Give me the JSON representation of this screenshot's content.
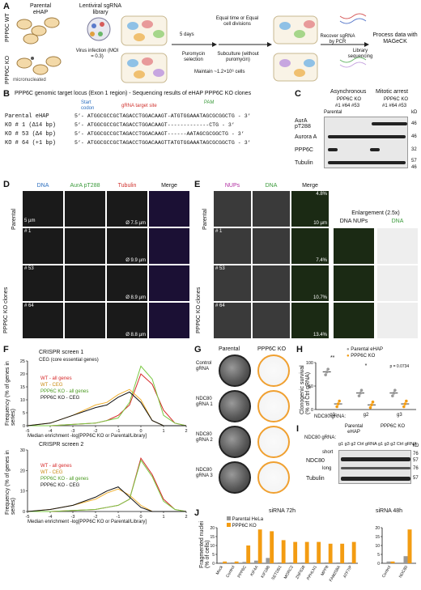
{
  "panel_a": {
    "label": "A",
    "row_wt": "PPP6C WT",
    "row_ko": "PPP6C KO",
    "parental": "Parental eHAP",
    "micronucleated": "micronucleated",
    "library": "Lentiviral sgRNA library",
    "infection": "Virus infection (MOI = 0.3)",
    "days": "5 days",
    "selection": "Puromycin selection",
    "equal": "Equal time or Equal cell divisions",
    "subculture": "Subculture (without puromycin)",
    "maintain": "Maintain ~1.2×10⁶ cells",
    "recover": "Recover sgRNA by PCR",
    "library_seq": "Library sequencing",
    "process": "Process data with MAGeCK"
  },
  "panel_b": {
    "label": "B",
    "title": "PPP6C genomic target locus (Exon 1 region) - Sequencing results of eHAP PPP6C KO clones",
    "start_codon": "Start codon",
    "target_site": "gRNA target site",
    "pam": "PAM",
    "rows": [
      {
        "name": "Parental eHAP",
        "seq": "5’- ATGGCGCCGCTAGACCTGGACAAGT-ATGTGGAAATAGCGCGGCTG - 3’"
      },
      {
        "name": "KO # 1 (Δ14 bp)",
        "seq": "5’- ATGGCGCCGCTAGACCTGGACAAGT-------------CTG - 3’"
      },
      {
        "name": "KO # 53 (Δ4 bp)",
        "seq": "5’- ATGGCGCCGCTAGACCTGGACAAGT------AATAGCGCGGCTG - 3’"
      },
      {
        "name": "KO # 64 (+1 bp)",
        "seq": "5’- ATGGCGCCGCTAGACCTGGACAAGTTATGTGGAAATAGCGCGGCTG - 3’"
      }
    ]
  },
  "panel_c": {
    "label": "C",
    "asynchronous": "Asynchronous",
    "mitotic": "Mitotic arrest",
    "ko": "PPP6C KO",
    "parental": "Parental",
    "clones": [
      "#1",
      "#64",
      "#53"
    ],
    "rows": [
      "AurA pT288",
      "Aurora A",
      "PPP6C",
      "Tubulin"
    ],
    "kd": "kD",
    "markers": [
      "46",
      "46",
      "32",
      "57",
      "46"
    ]
  },
  "panel_d": {
    "label": "D",
    "cols": [
      "DNA",
      "AurA pT288",
      "Tubulin",
      "Merge"
    ],
    "rows": [
      "Parental",
      "# 1",
      "# 53",
      "# 64"
    ],
    "side": "PPP6C KO clones",
    "scale": "5 µm",
    "diam": [
      "Ø 7.5 µm",
      "Ø 9.9 µm",
      "Ø 8.9 µm",
      "Ø 8.8 µm"
    ]
  },
  "panel_e": {
    "label": "E",
    "cols": [
      "NUPs",
      "DNA",
      "Merge"
    ],
    "enl": "Enlargement (2.5x)",
    "enl_cols": [
      "DNA NUPs",
      "DNA"
    ],
    "rows": [
      "Parental",
      "# 1",
      "# 53",
      "# 64"
    ],
    "side": "PPP6C KO clones",
    "pct": [
      "4.8%",
      "7.4%",
      "10.7%",
      "13.4%"
    ],
    "scale": "10 µm"
  },
  "panel_f": {
    "label": "F",
    "screen1": "CRISPR screen 1",
    "ceg": "CEG (core essential genes)",
    "screen2": "CRISPR screen 2",
    "ylabel": "Frequency (% of genes in series)",
    "xlabel": "Median enrichment -log[PPP6C KO or Parental/Library]",
    "legend": [
      "WT - all genes",
      "WT - CEG",
      "PPP6C KO - all genes",
      "PPP6C KO - CEG"
    ]
  },
  "panel_g": {
    "label": "G",
    "parental": "Parental",
    "ko": "PPP6C KO",
    "rows": [
      "Control gRNA",
      "NDC80 gRNA 1",
      "NDC80 gRNA 2",
      "NDC80 gRNA 3"
    ]
  },
  "panel_h": {
    "label": "H",
    "legend": [
      "Parental eHAP",
      "PPP6C KO"
    ],
    "ylabel": "Clonogenic survival (% of Ctrl gRNA)",
    "xlabel": "NDC80 gRNA:",
    "groups": [
      "g1",
      "g2",
      "g3"
    ],
    "pval": "p = 0.0734",
    "stars": [
      "**",
      "*"
    ]
  },
  "panel_i": {
    "label": "I",
    "parental": "Parental eHAP",
    "ko": "PPP6C KO",
    "gRNA": "NDC80 gRNA:",
    "lanes": [
      "g1",
      "g3",
      "g2",
      "Ctrl gRNA",
      "g1",
      "g3",
      "g2",
      "Ctrl gRNA"
    ],
    "rows": [
      "NDC80",
      "Tubulin"
    ],
    "extra": [
      "short",
      "long"
    ],
    "kd": "kD",
    "markers": [
      "76",
      "57",
      "76",
      "57"
    ]
  },
  "panel_j": {
    "label": "J",
    "title1": "siRNA 72h",
    "title2": "siRNA 48h",
    "legend": [
      "Parental HeLa",
      "PPP6C KO"
    ],
    "ylabel": "Fragmented nuclei (% of cells)"
  },
  "chart_data": [
    {
      "type": "line",
      "title": "CRISPR screen 1",
      "xlabel": "Median enrichment -log[PPP6C KO or Parental/Library]",
      "ylabel": "Frequency (% of genes in series)",
      "xlim": [
        -5,
        2
      ],
      "ylim": [
        0,
        25
      ],
      "x": [
        -5,
        -4,
        -3,
        -2,
        -1.5,
        -1,
        -0.5,
        0,
        0.5,
        1,
        1.5,
        2
      ],
      "series": [
        {
          "name": "WT - all genes",
          "values": [
            0,
            0,
            0.5,
            1,
            2,
            4,
            8,
            20,
            16,
            6,
            1,
            0
          ]
        },
        {
          "name": "WT - CEG",
          "values": [
            0,
            1,
            4,
            8,
            9,
            12,
            14,
            10,
            2,
            0,
            0,
            0
          ]
        },
        {
          "name": "PPP6C KO - all genes",
          "values": [
            0,
            0,
            0.5,
            1,
            2,
            3,
            9,
            23,
            18,
            4,
            1,
            0
          ]
        },
        {
          "name": "PPP6C KO - CEG",
          "values": [
            0,
            1,
            4,
            7,
            8,
            11,
            13,
            9,
            2,
            0,
            0,
            0
          ]
        }
      ]
    },
    {
      "type": "line",
      "title": "CRISPR screen 2",
      "xlabel": "Median enrichment -log[PPP6C KO or Parental/Library]",
      "ylabel": "Frequency (% of genes in series)",
      "xlim": [
        -5,
        2
      ],
      "ylim": [
        0,
        30
      ],
      "x": [
        -5,
        -4,
        -3,
        -2,
        -1.5,
        -1,
        -0.5,
        0,
        0.5,
        1,
        1.5,
        2
      ],
      "series": [
        {
          "name": "WT - all genes",
          "values": [
            0,
            0,
            0.5,
            1,
            2,
            3,
            6,
            26,
            18,
            6,
            1,
            0
          ]
        },
        {
          "name": "WT - CEG",
          "values": [
            0,
            1,
            3,
            6,
            9,
            11,
            8,
            3,
            0,
            0,
            0,
            0
          ]
        },
        {
          "name": "PPP6C KO - all genes",
          "values": [
            0,
            0,
            0.5,
            1,
            2,
            3,
            6,
            25,
            17,
            5,
            1,
            0
          ]
        },
        {
          "name": "PPP6C KO - CEG",
          "values": [
            0,
            1,
            3,
            7,
            10,
            12,
            7,
            2,
            0,
            0,
            0,
            0
          ]
        }
      ]
    },
    {
      "type": "scatter",
      "title": "",
      "ylabel": "Clonogenic survival (% of Ctrl gRNA)",
      "ylim": [
        0,
        100
      ],
      "categories": [
        "g1",
        "g2",
        "g3"
      ],
      "series": [
        {
          "name": "Parental eHAP",
          "values": [
            80,
            35,
            35
          ]
        },
        {
          "name": "PPP6C KO",
          "values": [
            12,
            10,
            12
          ]
        }
      ]
    },
    {
      "type": "bar",
      "title": "siRNA 72h",
      "ylabel": "Fragmented nuclei (% of cells)",
      "ylim": [
        0,
        20
      ],
      "categories": [
        "Mock",
        "Control",
        "PPP6C",
        "KIF4A",
        "KIF18B",
        "SETDB1",
        "MORC2",
        "ZNF638",
        "PPHLN1",
        "MPP8",
        "FAM208A",
        "ATF7IP"
      ],
      "series": [
        {
          "name": "Parental HeLa",
          "values": [
            0.5,
            0.5,
            0.8,
            1.5,
            3,
            0.5,
            0.5,
            0.5,
            0.5,
            0.5,
            0.5,
            0.5
          ]
        },
        {
          "name": "PPP6C KO",
          "values": [
            1,
            1,
            10,
            19,
            18,
            13,
            12,
            12,
            12,
            11,
            11,
            12
          ]
        }
      ]
    },
    {
      "type": "bar",
      "title": "siRNA 48h",
      "ylabel": "Fragmented nuclei (% of cells)",
      "ylim": [
        0,
        20
      ],
      "categories": [
        "Control",
        "NDC80"
      ],
      "series": [
        {
          "name": "Parental HeLa",
          "values": [
            1,
            4
          ]
        },
        {
          "name": "PPP6C KO",
          "values": [
            1,
            19
          ]
        }
      ]
    }
  ],
  "axis_ticks": {
    "f_y1": [
      "0",
      "5",
      "10",
      "15",
      "20",
      "25"
    ],
    "f_y2": [
      "0",
      "10",
      "20",
      "30"
    ],
    "f_x": [
      "-5",
      "-4",
      "-3",
      "-2",
      "-1",
      "0",
      "1",
      "2"
    ],
    "h_y": [
      "0",
      "50",
      "100"
    ],
    "j_y": [
      "0",
      "5",
      "10",
      "15",
      "20"
    ]
  },
  "colors": {
    "wt_all": "#d62728",
    "wt_ceg": "#f0b030",
    "ko_all": "#7ac943",
    "ko_ceg": "#111111",
    "parental": "#999999",
    "ko": "#f39c12",
    "red_text": "#d0312d",
    "blue_text": "#2c6fbf",
    "green_text": "#3a9a3a"
  }
}
